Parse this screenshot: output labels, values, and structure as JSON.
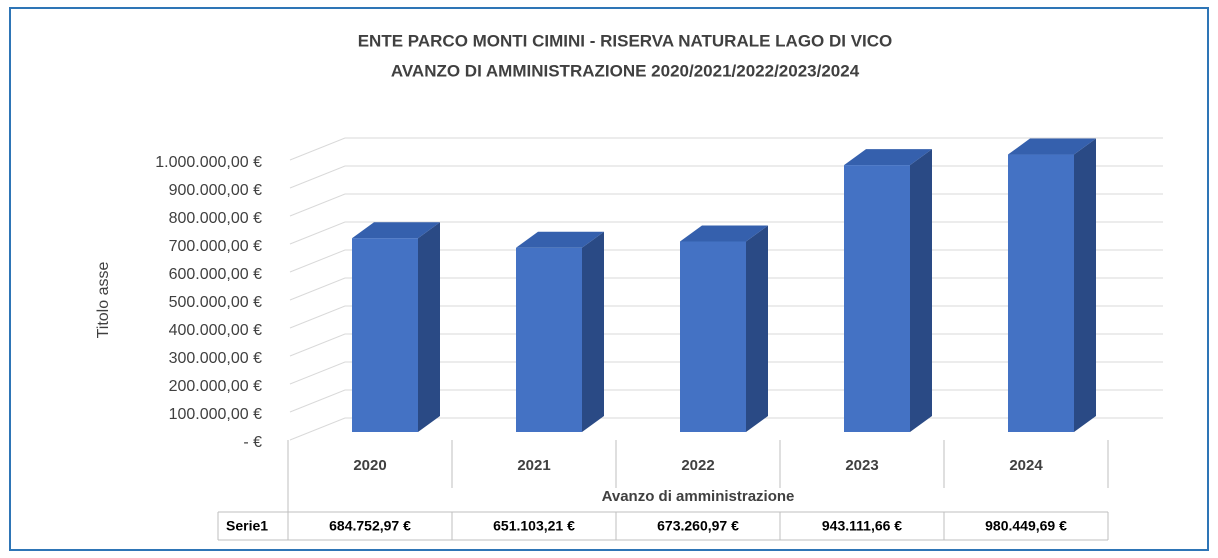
{
  "chart_data": {
    "type": "bar3d",
    "title": "ENTE PARCO MONTI CIMINI - RISERVA NATURALE LAGO DI VICO",
    "subtitle": "AVANZO DI AMMINISTRAZIONE 2020/2021/2022/2023/2024",
    "y_label": "Titolo asse",
    "x_label": "Avanzo di amministrazione",
    "categories": [
      "2020",
      "2021",
      "2022",
      "2023",
      "2024"
    ],
    "series": [
      {
        "name": "Serie1",
        "color": "#4472c4",
        "values": [
          684752.97,
          651103.21,
          673260.97,
          943111.66,
          980449.69
        ],
        "value_labels": [
          "684.752,97 €",
          "651.103,21 €",
          "673.260,97 €",
          "943.111,66 €",
          "980.449,69 €"
        ]
      }
    ],
    "ylim": [
      0,
      1000000
    ],
    "yticks": [
      {
        "value": 0,
        "label": "-   €"
      },
      {
        "value": 100000,
        "label": "100.000,00 €"
      },
      {
        "value": 200000,
        "label": "200.000,00 €"
      },
      {
        "value": 300000,
        "label": "300.000,00 €"
      },
      {
        "value": 400000,
        "label": "400.000,00 €"
      },
      {
        "value": 500000,
        "label": "500.000,00 €"
      },
      {
        "value": 600000,
        "label": "600.000,00 €"
      },
      {
        "value": 700000,
        "label": "700.000,00 €"
      },
      {
        "value": 800000,
        "label": "800.000,00 €"
      },
      {
        "value": 900000,
        "label": "900.000,00 €"
      },
      {
        "value": 1000000,
        "label": "1.000.000,00 €"
      }
    ],
    "grid": true
  }
}
